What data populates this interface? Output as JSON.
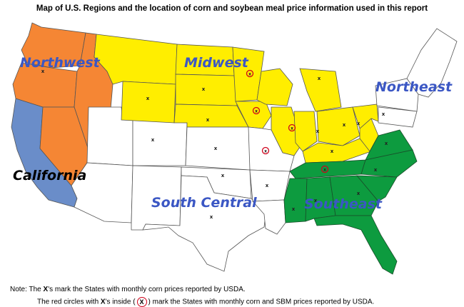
{
  "title": "Map of U.S. Regions and the location of corn and soybean meal price information used in this report",
  "regions": [
    {
      "key": "northwest",
      "label": "Northwest",
      "color": "#f58634"
    },
    {
      "key": "midwest",
      "label": "Midwest",
      "color": "#ffee00"
    },
    {
      "key": "northeast",
      "label": "Northeast",
      "color": "#ffffff"
    },
    {
      "key": "california",
      "label": "California",
      "color": "#6a8dc9"
    },
    {
      "key": "south_central",
      "label": "South Central",
      "color": "#ffffff"
    },
    {
      "key": "southeast",
      "label": "Southeast",
      "color": "#0d9b3f"
    }
  ],
  "label_colors": {
    "blue": "#3b57c4",
    "black": "#000000"
  },
  "markers": {
    "x_symbol": "x",
    "circle_color": "#d0021b"
  },
  "notes": {
    "line1_prefix": "Note: The ",
    "line1_x": "X",
    "line1_suffix": "'s mark the States with monthly corn prices reported by USDA.",
    "line2_prefix": "The red circles with ",
    "line2_x": "X",
    "line2_middle": "'s inside (",
    "line2_circle": "X",
    "line2_suffix": ") mark the States with monthly corn and SBM prices reported by USDA."
  }
}
